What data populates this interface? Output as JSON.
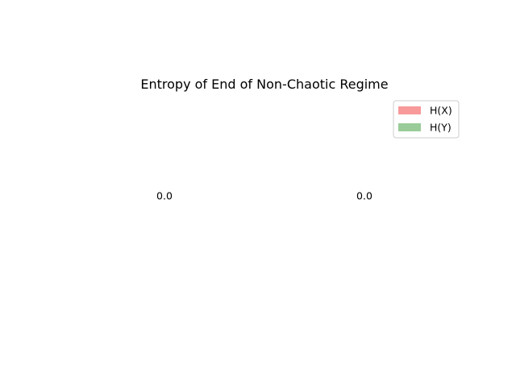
{
  "chart_data": {
    "type": "bar",
    "title": "Entropy of End of Non-Chaotic Regime",
    "categories": [
      "",
      ""
    ],
    "series": [
      {
        "name": "H(X)",
        "values": [
          0.0,
          0.0
        ],
        "color": "#f8999a"
      },
      {
        "name": "H(Y)",
        "values": [
          0.0,
          0.0
        ],
        "color": "#99cc99"
      }
    ],
    "bar_labels": [
      "0.0",
      "0.0"
    ],
    "axes_visible": false,
    "grid": false,
    "legend_position": "upper-right"
  }
}
